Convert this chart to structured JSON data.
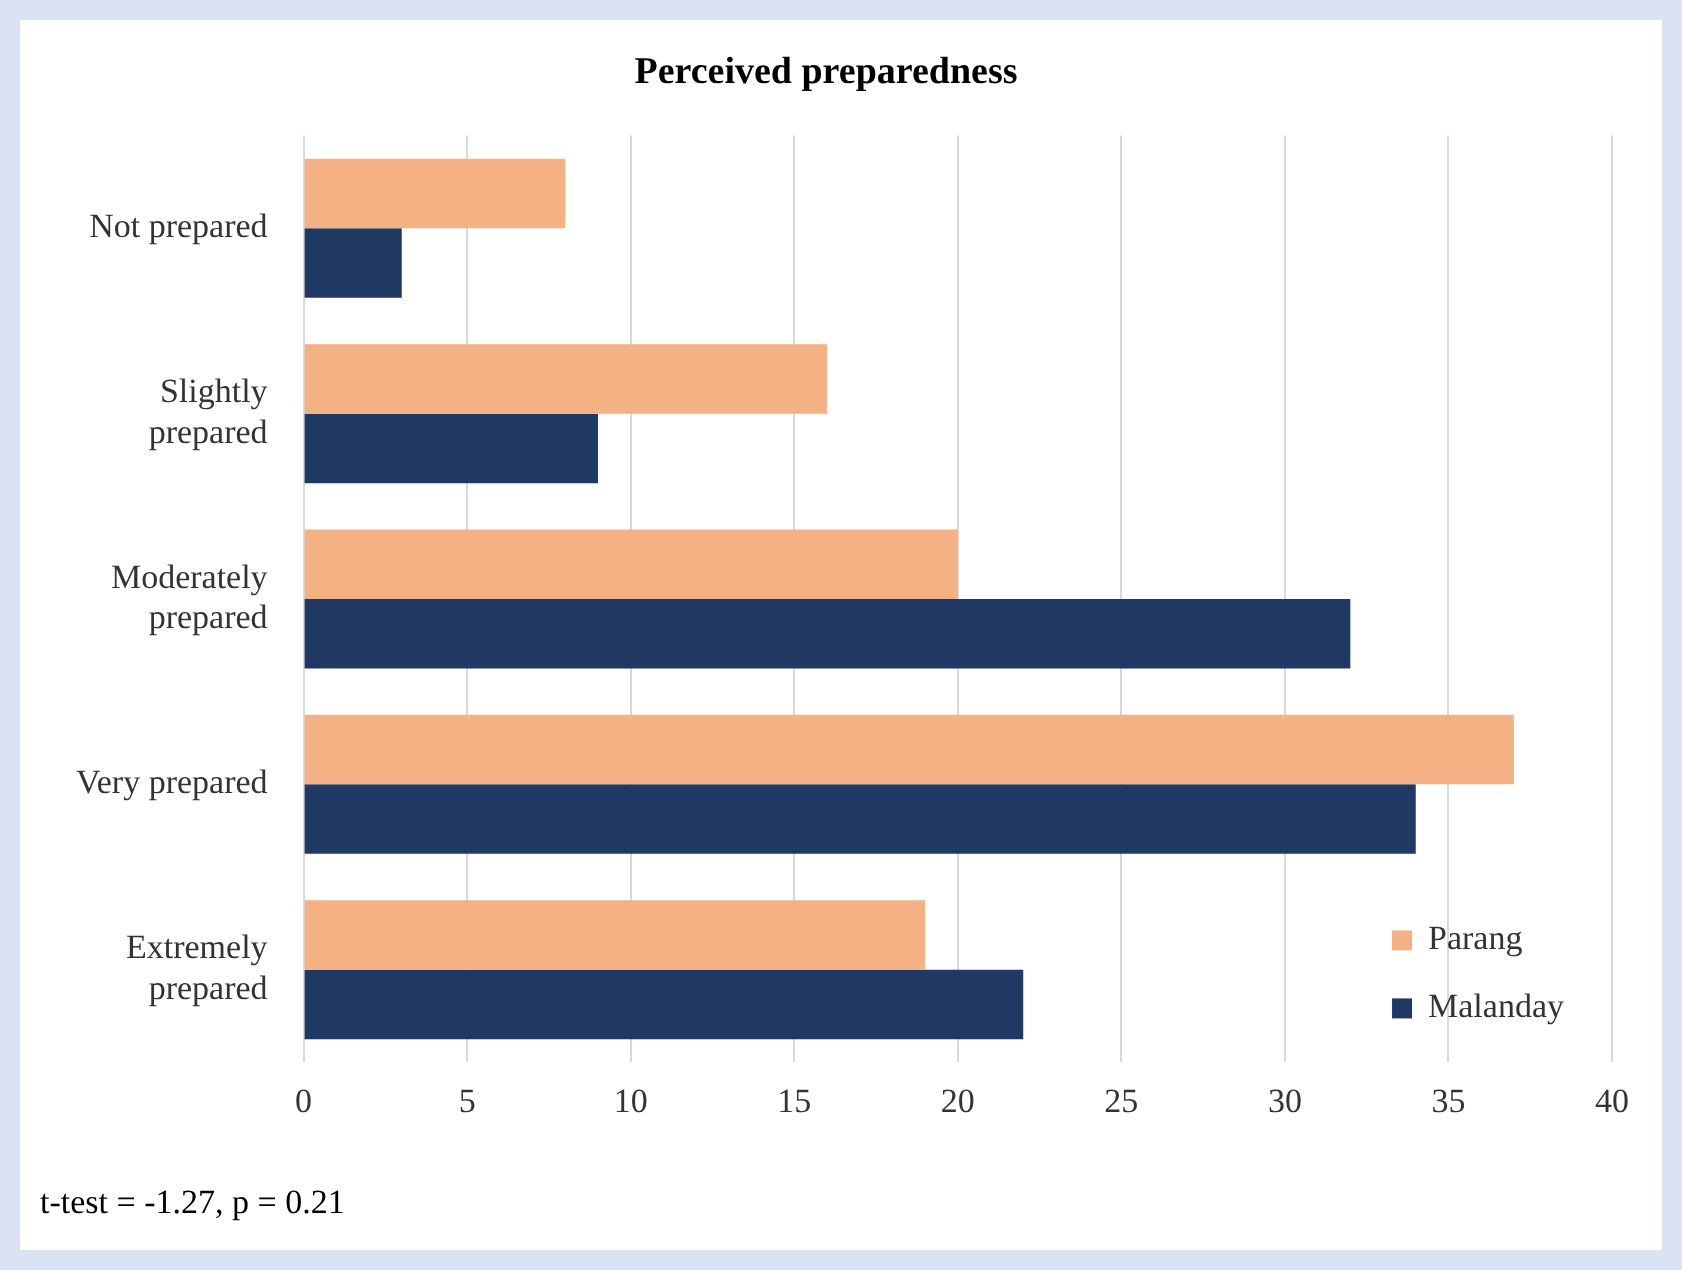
{
  "chart_data": {
    "type": "bar",
    "orientation": "horizontal",
    "title": "Perceived preparedness",
    "categories": [
      "Not prepared",
      "Slightly prepared",
      "Moderately prepared",
      "Very prepared",
      "Extremely prepared"
    ],
    "series": [
      {
        "name": "Parang",
        "color": "#f4b183",
        "values": [
          8,
          16,
          20,
          37,
          19
        ]
      },
      {
        "name": "Malanday",
        "color": "#203864",
        "values": [
          3,
          9,
          32,
          34,
          22
        ]
      }
    ],
    "xlim": [
      0,
      40
    ],
    "xticks": [
      0,
      5,
      10,
      15,
      20,
      25,
      30,
      35,
      40
    ],
    "grid": "x",
    "legend": "bottom right",
    "annotations": [
      "t-test = -1.27, p = 0.21"
    ]
  }
}
